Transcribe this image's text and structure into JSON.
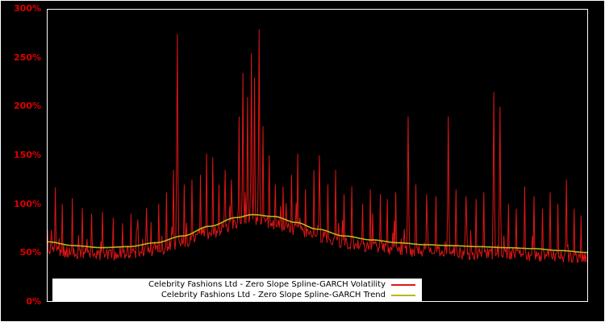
{
  "chart_data": {
    "type": "line",
    "title": "",
    "xlabel": "",
    "ylabel": "",
    "background": "#000000",
    "frame_color": "#ffffff",
    "grid": false,
    "legend_position": "bottom-left-inside",
    "legend_background": "#ffffff",
    "axis_label_color": "#dd0000",
    "ylim": [
      0,
      300
    ],
    "ytick_values": [
      0,
      50,
      100,
      150,
      200,
      250,
      300
    ],
    "ytick_labels": [
      "0%",
      "50%",
      "100%",
      "150%",
      "200%",
      "250%",
      "300%"
    ],
    "series": [
      {
        "name": "Celebrity Fashions Ltd - Zero Slope Spline-GARCH Volatility",
        "color": "#e01515",
        "style": "spiky-line"
      },
      {
        "name": "Celebrity Fashions Ltd - Zero Slope Spline-GARCH Trend",
        "color": "#b9b918",
        "style": "smooth-line"
      }
    ],
    "trend_control_points": [
      [
        0.0,
        61
      ],
      [
        0.05,
        57
      ],
      [
        0.1,
        55
      ],
      [
        0.15,
        56
      ],
      [
        0.2,
        60
      ],
      [
        0.25,
        67
      ],
      [
        0.3,
        77
      ],
      [
        0.35,
        86
      ],
      [
        0.38,
        89
      ],
      [
        0.42,
        87
      ],
      [
        0.46,
        81
      ],
      [
        0.5,
        74
      ],
      [
        0.55,
        67
      ],
      [
        0.6,
        63
      ],
      [
        0.65,
        60
      ],
      [
        0.7,
        58
      ],
      [
        0.75,
        57
      ],
      [
        0.8,
        56
      ],
      [
        0.85,
        55
      ],
      [
        0.9,
        54
      ],
      [
        0.95,
        52
      ],
      [
        1.0,
        50
      ]
    ],
    "spikes_xy": [
      [
        0.015,
        117
      ],
      [
        0.027,
        100
      ],
      [
        0.046,
        106
      ],
      [
        0.064,
        96
      ],
      [
        0.082,
        90
      ],
      [
        0.101,
        92
      ],
      [
        0.121,
        86
      ],
      [
        0.139,
        80
      ],
      [
        0.154,
        90
      ],
      [
        0.168,
        84
      ],
      [
        0.183,
        96
      ],
      [
        0.206,
        100
      ],
      [
        0.221,
        112
      ],
      [
        0.233,
        135
      ],
      [
        0.241,
        275
      ],
      [
        0.253,
        120
      ],
      [
        0.268,
        125
      ],
      [
        0.283,
        130
      ],
      [
        0.295,
        152
      ],
      [
        0.306,
        148
      ],
      [
        0.317,
        120
      ],
      [
        0.329,
        135
      ],
      [
        0.34,
        125
      ],
      [
        0.355,
        190
      ],
      [
        0.362,
        235
      ],
      [
        0.37,
        210
      ],
      [
        0.377,
        255
      ],
      [
        0.384,
        230
      ],
      [
        0.392,
        280
      ],
      [
        0.399,
        180
      ],
      [
        0.41,
        150
      ],
      [
        0.422,
        120
      ],
      [
        0.437,
        118
      ],
      [
        0.452,
        130
      ],
      [
        0.464,
        152
      ],
      [
        0.478,
        115
      ],
      [
        0.493,
        135
      ],
      [
        0.504,
        150
      ],
      [
        0.519,
        120
      ],
      [
        0.534,
        135
      ],
      [
        0.549,
        110
      ],
      [
        0.563,
        118
      ],
      [
        0.583,
        100
      ],
      [
        0.598,
        115
      ],
      [
        0.616,
        110
      ],
      [
        0.63,
        105
      ],
      [
        0.645,
        112
      ],
      [
        0.668,
        190
      ],
      [
        0.683,
        120
      ],
      [
        0.702,
        110
      ],
      [
        0.72,
        108
      ],
      [
        0.742,
        190
      ],
      [
        0.757,
        115
      ],
      [
        0.776,
        108
      ],
      [
        0.794,
        105
      ],
      [
        0.809,
        112
      ],
      [
        0.827,
        215
      ],
      [
        0.839,
        200
      ],
      [
        0.854,
        100
      ],
      [
        0.869,
        95
      ],
      [
        0.884,
        118
      ],
      [
        0.902,
        108
      ],
      [
        0.917,
        95
      ],
      [
        0.932,
        112
      ],
      [
        0.946,
        100
      ],
      [
        0.961,
        125
      ],
      [
        0.976,
        95
      ],
      [
        0.988,
        88
      ]
    ],
    "volatility_params": {
      "n_points": 700,
      "seed": 20240601,
      "base_offset": -7,
      "noise_amp": 13,
      "minor_spike_prob": 0.1,
      "minor_spike_max": 30,
      "floor_value": 40
    }
  }
}
